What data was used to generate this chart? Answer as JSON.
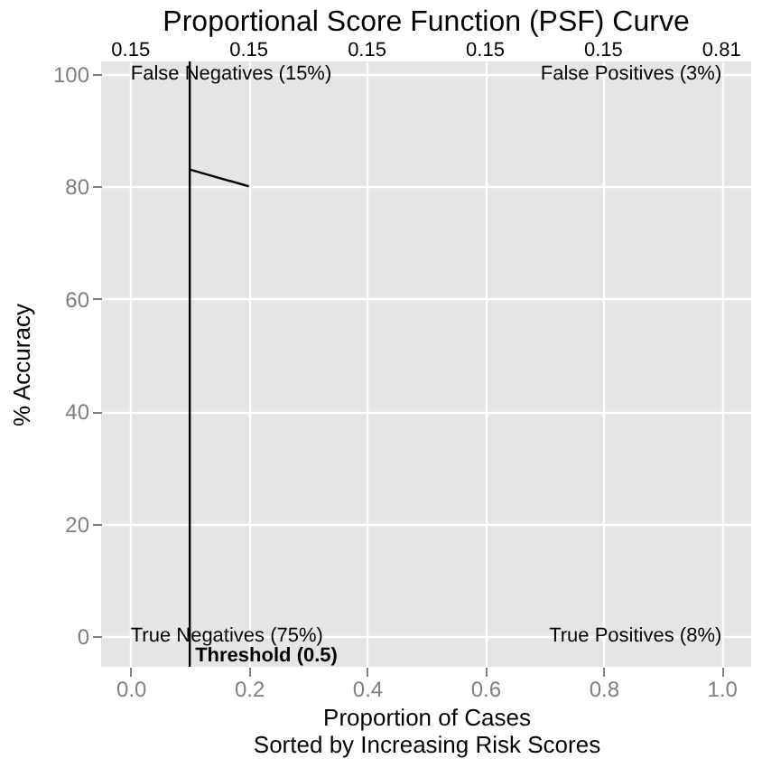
{
  "chart_data": {
    "type": "line",
    "title": "Proportional Score Function (PSF) Curve",
    "xlabel": "Proportion of Cases\nSorted by Increasing Risk Scores",
    "ylabel": "% Accuracy",
    "x": [
      0.1,
      0.2
    ],
    "series": [
      {
        "color": "#000000",
        "values": [
          83,
          80
        ]
      }
    ],
    "xlim": [
      -0.05,
      1.05
    ],
    "ylim": [
      -5.4,
      102.2
    ],
    "xticks": [
      {
        "value": 0,
        "label": "0.0"
      },
      0.2,
      0.4,
      0.6,
      0.8,
      {
        "value": 1,
        "label": "1.0"
      }
    ],
    "yticks": [
      0,
      20,
      40,
      60,
      80,
      100
    ],
    "ref_lines": [
      {
        "axis": "x",
        "value": 0.1,
        "label": "Threshold (0.5)",
        "color": "#000000"
      }
    ],
    "annotations": [
      "False Negatives (15%)",
      "False Positives (3%)",
      "True Negatives (75%)",
      "True Positives (8%)",
      "0.15",
      "0.15",
      "0.15",
      "0.15",
      "0.15",
      "0.81"
    ],
    "grid": true
  }
}
